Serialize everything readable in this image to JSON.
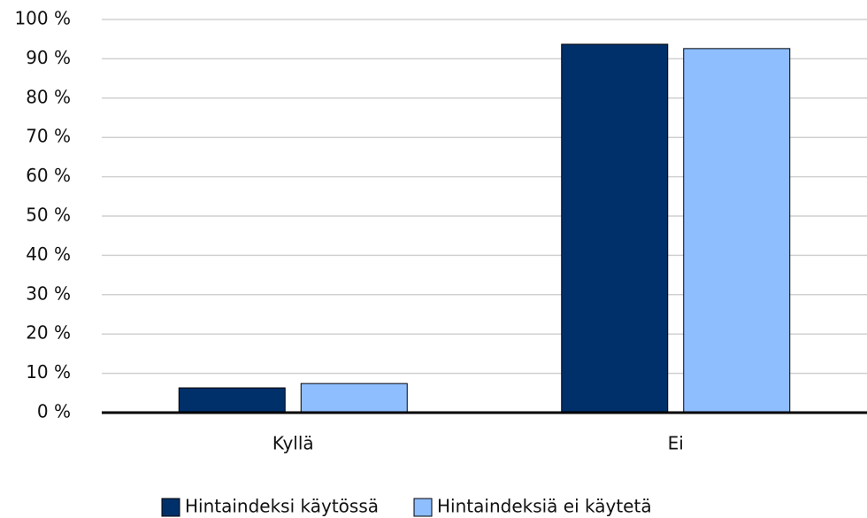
{
  "chart_data": {
    "type": "bar",
    "categories": [
      "Kyllä",
      "Ei"
    ],
    "series": [
      {
        "name": "Hintaindeksi käytössä",
        "color": "#00306a",
        "values": [
          6.3,
          93.7
        ]
      },
      {
        "name": "Hintaindeksiä ei käytetä",
        "color": "#8fbeff",
        "values": [
          7.4,
          92.6
        ]
      }
    ],
    "ylim": [
      0,
      100
    ],
    "yticks": [
      {
        "value": 0,
        "label": "0 %"
      },
      {
        "value": 10,
        "label": "10 %"
      },
      {
        "value": 20,
        "label": "20 %"
      },
      {
        "value": 30,
        "label": "30 %"
      },
      {
        "value": 40,
        "label": "40 %"
      },
      {
        "value": 50,
        "label": "50 %"
      },
      {
        "value": 60,
        "label": "60 %"
      },
      {
        "value": 70,
        "label": "70 %"
      },
      {
        "value": 80,
        "label": "80 %"
      },
      {
        "value": 90,
        "label": "90 %"
      },
      {
        "value": 100,
        "label": "100 %"
      }
    ],
    "grid": true,
    "legend": "bottom"
  }
}
